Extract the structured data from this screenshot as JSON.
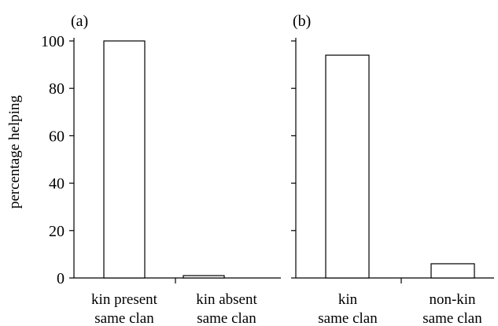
{
  "chart_data": [
    {
      "type": "bar",
      "panel_label": "(a)",
      "categories": [
        [
          "kin present",
          "same clan"
        ],
        [
          "kin absent",
          "same clan"
        ]
      ],
      "values": [
        100,
        1
      ],
      "ylabel": "percentage helping",
      "ylim": [
        0,
        100
      ],
      "yticks": [
        "0",
        "20",
        "40",
        "60",
        "80",
        "100"
      ],
      "grid": false
    },
    {
      "type": "bar",
      "panel_label": "(b)",
      "categories": [
        [
          "kin",
          "same clan"
        ],
        [
          "non-kin",
          "same clan"
        ]
      ],
      "values": [
        94,
        6
      ],
      "ylabel": "",
      "ylim": [
        0,
        100
      ],
      "yticks": [],
      "grid": false
    }
  ]
}
